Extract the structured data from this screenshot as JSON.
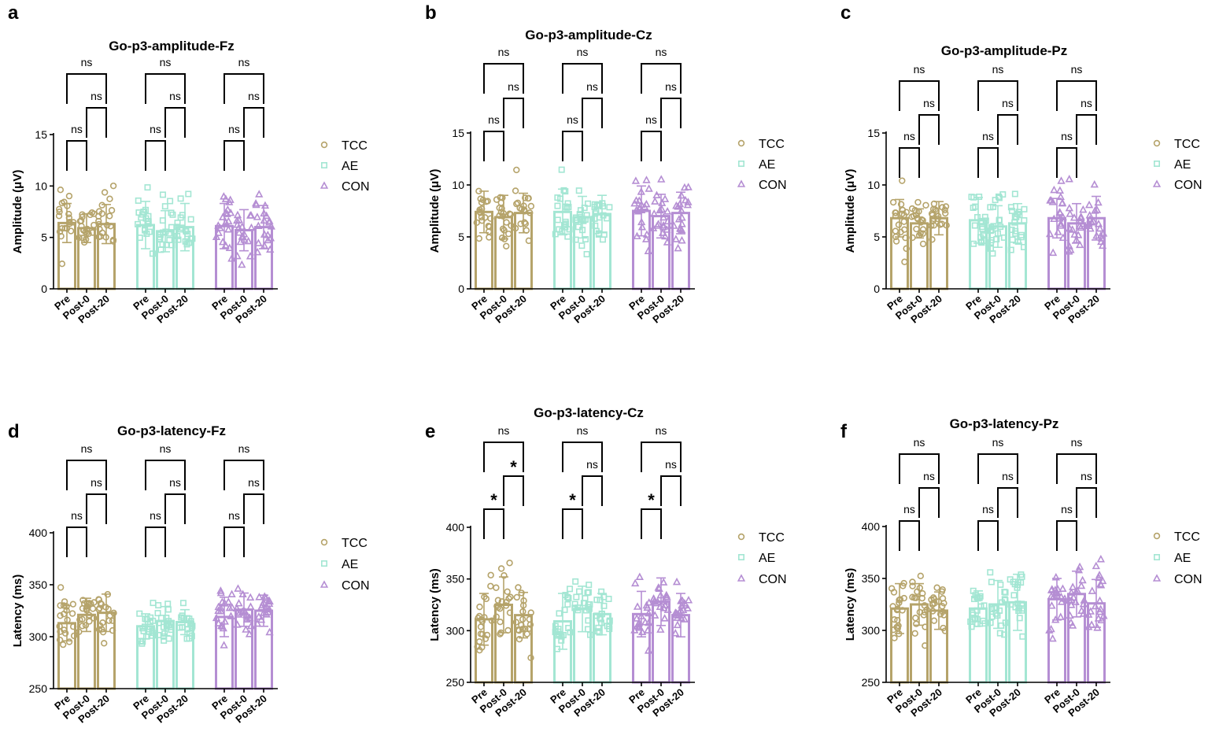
{
  "figure": {
    "groups": [
      "TCC",
      "AE",
      "CON"
    ],
    "timepoints": [
      "Pre",
      "Post-0",
      "Post-20"
    ],
    "colors": {
      "TCC": "#b5a36a",
      "AE": "#a3e6d3",
      "CON": "#b58ed3"
    },
    "markers": {
      "TCC": "circle",
      "AE": "square",
      "CON": "triangle"
    }
  },
  "chart_data": [
    {
      "panel_label": "a",
      "type": "bar",
      "title": "Go-p3-amplitude-Fz",
      "ylabel": "Amplitude (μV)",
      "ylim": [
        0,
        15
      ],
      "yticks": [
        0,
        5,
        10,
        15
      ],
      "categories": [
        "Pre",
        "Post-0",
        "Post-20"
      ],
      "legend": [
        "TCC",
        "AE",
        "CON"
      ],
      "series": [
        {
          "name": "TCC",
          "values": [
            6.4,
            5.9,
            6.3
          ],
          "errors": [
            1.9,
            1.4,
            1.9
          ]
        },
        {
          "name": "AE",
          "values": [
            6.2,
            5.6,
            6.0
          ],
          "errors": [
            2.3,
            2.0,
            2.3
          ]
        },
        {
          "name": "CON",
          "values": [
            6.1,
            5.7,
            6.0
          ],
          "errors": [
            2.2,
            2.0,
            2.1
          ]
        }
      ],
      "comparisons": [
        {
          "group": "TCC",
          "from": "Pre",
          "to": "Post-0",
          "label": "ns"
        },
        {
          "group": "TCC",
          "from": "Post-0",
          "to": "Post-20",
          "label": "ns"
        },
        {
          "group": "TCC",
          "from": "Pre",
          "to": "Post-20",
          "label": "ns"
        },
        {
          "group": "AE",
          "from": "Pre",
          "to": "Post-0",
          "label": "ns"
        },
        {
          "group": "AE",
          "from": "Post-0",
          "to": "Post-20",
          "label": "ns"
        },
        {
          "group": "AE",
          "from": "Pre",
          "to": "Post-20",
          "label": "ns"
        },
        {
          "group": "CON",
          "from": "Pre",
          "to": "Post-0",
          "label": "ns"
        },
        {
          "group": "CON",
          "from": "Post-0",
          "to": "Post-20",
          "label": "ns"
        },
        {
          "group": "CON",
          "from": "Pre",
          "to": "Post-20",
          "label": "ns"
        }
      ]
    },
    {
      "panel_label": "b",
      "type": "bar",
      "title": "Go-p3-amplitude-Cz",
      "ylabel": "Amplitude (μV)",
      "ylim": [
        0,
        15
      ],
      "yticks": [
        0,
        5,
        10,
        15
      ],
      "categories": [
        "Pre",
        "Post-0",
        "Post-20"
      ],
      "legend": [
        "TCC",
        "AE",
        "CON"
      ],
      "series": [
        {
          "name": "TCC",
          "values": [
            7.4,
            6.9,
            7.3
          ],
          "errors": [
            2.0,
            2.1,
            1.9
          ]
        },
        {
          "name": "AE",
          "values": [
            7.4,
            6.9,
            7.2
          ],
          "errors": [
            2.2,
            2.0,
            1.8
          ]
        },
        {
          "name": "CON",
          "values": [
            7.5,
            7.0,
            7.3
          ],
          "errors": [
            2.4,
            2.1,
            2.0
          ]
        }
      ],
      "comparisons": [
        {
          "group": "TCC",
          "from": "Pre",
          "to": "Post-0",
          "label": "ns"
        },
        {
          "group": "TCC",
          "from": "Post-0",
          "to": "Post-20",
          "label": "ns"
        },
        {
          "group": "TCC",
          "from": "Pre",
          "to": "Post-20",
          "label": "ns"
        },
        {
          "group": "AE",
          "from": "Pre",
          "to": "Post-0",
          "label": "ns"
        },
        {
          "group": "AE",
          "from": "Post-0",
          "to": "Post-20",
          "label": "ns"
        },
        {
          "group": "AE",
          "from": "Pre",
          "to": "Post-20",
          "label": "ns"
        },
        {
          "group": "CON",
          "from": "Pre",
          "to": "Post-0",
          "label": "ns"
        },
        {
          "group": "CON",
          "from": "Post-0",
          "to": "Post-20",
          "label": "ns"
        },
        {
          "group": "CON",
          "from": "Pre",
          "to": "Post-20",
          "label": "ns"
        }
      ]
    },
    {
      "panel_label": "c",
      "type": "bar",
      "title": "Go-p3-amplitude-Pz",
      "ylabel": "Amplitude (μV)",
      "ylim": [
        0,
        15
      ],
      "yticks": [
        0,
        5,
        10,
        15
      ],
      "categories": [
        "Pre",
        "Post-0",
        "Post-20"
      ],
      "legend": [
        "TCC",
        "AE",
        "CON"
      ],
      "series": [
        {
          "name": "TCC",
          "values": [
            6.8,
            6.3,
            6.8
          ],
          "errors": [
            1.8,
            1.4,
            1.6
          ]
        },
        {
          "name": "AE",
          "values": [
            6.6,
            6.0,
            6.3
          ],
          "errors": [
            2.2,
            2.0,
            1.9
          ]
        },
        {
          "name": "CON",
          "values": [
            6.8,
            6.3,
            6.8
          ],
          "errors": [
            1.9,
            1.9,
            2.1
          ]
        }
      ],
      "comparisons": [
        {
          "group": "TCC",
          "from": "Pre",
          "to": "Post-0",
          "label": "ns"
        },
        {
          "group": "TCC",
          "from": "Post-0",
          "to": "Post-20",
          "label": "ns"
        },
        {
          "group": "TCC",
          "from": "Pre",
          "to": "Post-20",
          "label": "ns"
        },
        {
          "group": "AE",
          "from": "Pre",
          "to": "Post-0",
          "label": "ns"
        },
        {
          "group": "AE",
          "from": "Post-0",
          "to": "Post-20",
          "label": "ns"
        },
        {
          "group": "AE",
          "from": "Pre",
          "to": "Post-20",
          "label": "ns"
        },
        {
          "group": "CON",
          "from": "Pre",
          "to": "Post-0",
          "label": "ns"
        },
        {
          "group": "CON",
          "from": "Post-0",
          "to": "Post-20",
          "label": "ns"
        },
        {
          "group": "CON",
          "from": "Pre",
          "to": "Post-20",
          "label": "ns"
        }
      ]
    },
    {
      "panel_label": "d",
      "type": "bar",
      "title": "Go-p3-latency-Fz",
      "ylabel": "Latency (ms)",
      "ylim": [
        250,
        400
      ],
      "yticks": [
        250,
        300,
        350,
        400
      ],
      "categories": [
        "Pre",
        "Post-0",
        "Post-20"
      ],
      "legend": [
        "TCC",
        "AE",
        "CON"
      ],
      "series": [
        {
          "name": "TCC",
          "values": [
            313,
            321,
            323
          ],
          "errors": [
            17,
            16,
            18
          ]
        },
        {
          "name": "AE",
          "values": [
            310,
            315,
            314
          ],
          "errors": [
            12,
            14,
            12
          ]
        },
        {
          "name": "CON",
          "values": [
            319,
            326,
            325
          ],
          "errors": [
            19,
            16,
            15
          ]
        }
      ],
      "comparisons": [
        {
          "group": "TCC",
          "from": "Pre",
          "to": "Post-0",
          "label": "ns"
        },
        {
          "group": "TCC",
          "from": "Post-0",
          "to": "Post-20",
          "label": "ns"
        },
        {
          "group": "TCC",
          "from": "Pre",
          "to": "Post-20",
          "label": "ns"
        },
        {
          "group": "AE",
          "from": "Pre",
          "to": "Post-0",
          "label": "ns"
        },
        {
          "group": "AE",
          "from": "Post-0",
          "to": "Post-20",
          "label": "ns"
        },
        {
          "group": "AE",
          "from": "Pre",
          "to": "Post-20",
          "label": "ns"
        },
        {
          "group": "CON",
          "from": "Pre",
          "to": "Post-0",
          "label": "ns"
        },
        {
          "group": "CON",
          "from": "Post-0",
          "to": "Post-20",
          "label": "ns"
        },
        {
          "group": "CON",
          "from": "Pre",
          "to": "Post-20",
          "label": "ns"
        }
      ]
    },
    {
      "panel_label": "e",
      "type": "bar",
      "title": "Go-p3-latency-Cz",
      "ylabel": "Latency (ms)",
      "ylim": [
        250,
        400
      ],
      "yticks": [
        250,
        300,
        350,
        400
      ],
      "categories": [
        "Pre",
        "Post-0",
        "Post-20"
      ],
      "legend": [
        "TCC",
        "AE",
        "CON"
      ],
      "series": [
        {
          "name": "TCC",
          "values": [
            311,
            325,
            315
          ],
          "errors": [
            25,
            27,
            22
          ]
        },
        {
          "name": "AE",
          "values": [
            309,
            321,
            316
          ],
          "errors": [
            27,
            22,
            20
          ]
        },
        {
          "name": "CON",
          "values": [
            316,
            328,
            315
          ],
          "errors": [
            22,
            23,
            21
          ]
        }
      ],
      "comparisons": [
        {
          "group": "TCC",
          "from": "Pre",
          "to": "Post-0",
          "label": "*"
        },
        {
          "group": "TCC",
          "from": "Post-0",
          "to": "Post-20",
          "label": "*"
        },
        {
          "group": "TCC",
          "from": "Pre",
          "to": "Post-20",
          "label": "ns"
        },
        {
          "group": "AE",
          "from": "Pre",
          "to": "Post-0",
          "label": "*"
        },
        {
          "group": "AE",
          "from": "Post-0",
          "to": "Post-20",
          "label": "ns"
        },
        {
          "group": "AE",
          "from": "Pre",
          "to": "Post-20",
          "label": "ns"
        },
        {
          "group": "CON",
          "from": "Pre",
          "to": "Post-0",
          "label": "*"
        },
        {
          "group": "CON",
          "from": "Post-0",
          "to": "Post-20",
          "label": "ns"
        },
        {
          "group": "CON",
          "from": "Pre",
          "to": "Post-20",
          "label": "ns"
        }
      ]
    },
    {
      "panel_label": "f",
      "type": "bar",
      "title": "Go-p3-latency-Pz",
      "ylabel": "Latency (ms)",
      "ylim": [
        250,
        400
      ],
      "yticks": [
        250,
        300,
        350,
        400
      ],
      "categories": [
        "Pre",
        "Post-0",
        "Post-20"
      ],
      "legend": [
        "TCC",
        "AE",
        "CON"
      ],
      "series": [
        {
          "name": "TCC",
          "values": [
            321,
            325,
            319
          ],
          "errors": [
            24,
            20,
            18
          ]
        },
        {
          "name": "AE",
          "values": [
            321,
            325,
            327
          ],
          "errors": [
            17,
            23,
            27
          ]
        },
        {
          "name": "CON",
          "values": [
            330,
            335,
            326
          ],
          "errors": [
            20,
            22,
            23
          ]
        }
      ],
      "comparisons": [
        {
          "group": "TCC",
          "from": "Pre",
          "to": "Post-0",
          "label": "ns"
        },
        {
          "group": "TCC",
          "from": "Post-0",
          "to": "Post-20",
          "label": "ns"
        },
        {
          "group": "TCC",
          "from": "Pre",
          "to": "Post-20",
          "label": "ns"
        },
        {
          "group": "AE",
          "from": "Pre",
          "to": "Post-0",
          "label": "ns"
        },
        {
          "group": "AE",
          "from": "Post-0",
          "to": "Post-20",
          "label": "ns"
        },
        {
          "group": "AE",
          "from": "Pre",
          "to": "Post-20",
          "label": "ns"
        },
        {
          "group": "CON",
          "from": "Pre",
          "to": "Post-0",
          "label": "ns"
        },
        {
          "group": "CON",
          "from": "Post-0",
          "to": "Post-20",
          "label": "ns"
        },
        {
          "group": "CON",
          "from": "Pre",
          "to": "Post-20",
          "label": "ns"
        }
      ]
    }
  ]
}
